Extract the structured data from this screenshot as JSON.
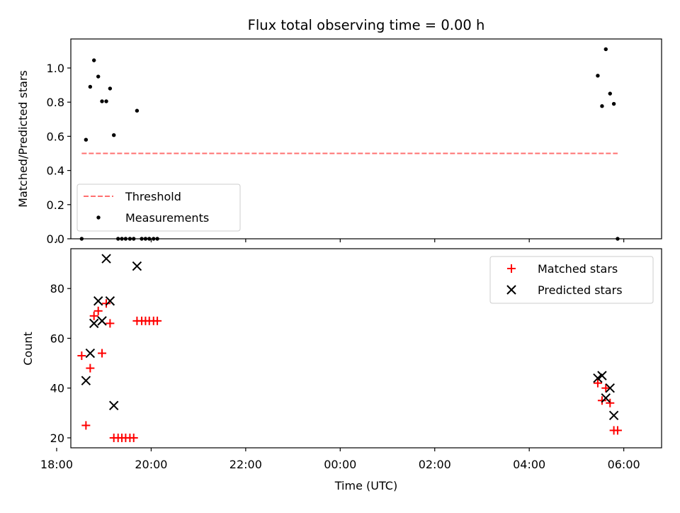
{
  "chart_data": [
    {
      "type": "scatter",
      "title": "Flux total observing time = 0.00 h",
      "ylabel": "Matched/Predicted stars",
      "xlabel": "",
      "xlim": [
        18.3,
        30.8
      ],
      "ylim": [
        0,
        1.17
      ],
      "grid": false,
      "legend": "lower-left",
      "x_ticks": [
        18,
        20,
        22,
        24,
        26,
        28,
        30
      ],
      "y_ticks": [
        0.0,
        0.2,
        0.4,
        0.6,
        0.8,
        1.0
      ],
      "y_tick_labels": [
        "0.0",
        "0.2",
        "0.4",
        "0.6",
        "0.8",
        "1.0"
      ],
      "threshold": {
        "name": "Threshold",
        "y": 0.5,
        "x_range": [
          18.53,
          29.87
        ],
        "color": "#ff7070"
      },
      "series": [
        {
          "name": "Measurements",
          "color": "#000000",
          "points": [
            [
              18.53,
              0.0
            ],
            [
              18.62,
              0.58
            ],
            [
              18.71,
              0.89
            ],
            [
              18.79,
              1.045
            ],
            [
              18.88,
              0.95
            ],
            [
              18.96,
              0.805
            ],
            [
              19.05,
              0.805
            ],
            [
              19.13,
              0.88
            ],
            [
              19.21,
              0.607
            ],
            [
              19.3,
              0.0
            ],
            [
              19.38,
              0.0
            ],
            [
              19.46,
              0.0
            ],
            [
              19.55,
              0.0
            ],
            [
              19.63,
              0.0
            ],
            [
              19.7,
              0.75
            ],
            [
              19.8,
              0.0
            ],
            [
              19.88,
              0.0
            ],
            [
              19.96,
              0.0
            ],
            [
              20.05,
              0.0
            ],
            [
              20.13,
              0.0
            ],
            [
              29.45,
              0.955
            ],
            [
              29.54,
              0.777
            ],
            [
              29.62,
              1.11
            ],
            [
              29.71,
              0.85
            ],
            [
              29.79,
              0.79
            ],
            [
              29.87,
              0.0
            ]
          ]
        }
      ]
    },
    {
      "type": "scatter",
      "title": "",
      "ylabel": "Count",
      "xlabel": "Time (UTC)",
      "xlim": [
        18.3,
        30.8
      ],
      "ylim": [
        16,
        96
      ],
      "grid": false,
      "legend": "top-right",
      "x_ticks": [
        18,
        20,
        22,
        24,
        26,
        28,
        30
      ],
      "x_tick_labels": [
        "18:00",
        "20:00",
        "22:00",
        "00:00",
        "02:00",
        "04:00",
        "06:00"
      ],
      "y_ticks": [
        20,
        40,
        60,
        80
      ],
      "y_tick_labels": [
        "20",
        "40",
        "60",
        "80"
      ],
      "series": [
        {
          "name": "Matched stars",
          "marker": "plus",
          "color": "#ff0000",
          "points": [
            [
              18.53,
              53
            ],
            [
              18.62,
              25
            ],
            [
              18.71,
              48
            ],
            [
              18.79,
              69
            ],
            [
              18.88,
              71
            ],
            [
              18.96,
              54
            ],
            [
              19.05,
              74
            ],
            [
              19.13,
              66
            ],
            [
              19.21,
              20
            ],
            [
              19.3,
              20
            ],
            [
              19.38,
              20
            ],
            [
              19.46,
              20
            ],
            [
              19.55,
              20
            ],
            [
              19.63,
              20
            ],
            [
              19.7,
              67
            ],
            [
              19.8,
              67
            ],
            [
              19.88,
              67
            ],
            [
              19.96,
              67
            ],
            [
              20.05,
              67
            ],
            [
              20.13,
              67
            ],
            [
              29.45,
              42
            ],
            [
              29.54,
              35
            ],
            [
              29.62,
              40
            ],
            [
              29.71,
              34
            ],
            [
              29.79,
              23
            ],
            [
              29.87,
              23
            ]
          ]
        },
        {
          "name": "Predicted stars",
          "marker": "x",
          "color": "#000000",
          "points": [
            [
              18.62,
              43
            ],
            [
              18.71,
              54
            ],
            [
              18.79,
              66
            ],
            [
              18.88,
              75
            ],
            [
              18.96,
              67
            ],
            [
              19.05,
              92
            ],
            [
              19.13,
              75
            ],
            [
              19.21,
              33
            ],
            [
              19.7,
              89
            ],
            [
              29.45,
              44
            ],
            [
              29.54,
              45
            ],
            [
              29.62,
              36
            ],
            [
              29.71,
              40
            ],
            [
              29.79,
              29
            ]
          ]
        }
      ]
    }
  ]
}
